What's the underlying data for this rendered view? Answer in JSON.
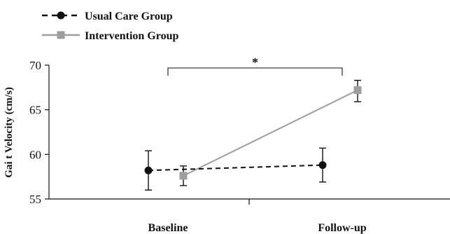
{
  "chart_data": {
    "type": "line",
    "ylabel": "Gai t Velocity (cm/s)",
    "xlabel": "",
    "categories": [
      "Baseline",
      "Follow-up"
    ],
    "ylim": [
      55,
      70
    ],
    "yticks": [
      55,
      60,
      65,
      70
    ],
    "grid": false,
    "legend_position": "top-left",
    "series": [
      {
        "name": "Usual Care Group",
        "values": [
          58.2,
          58.8
        ],
        "error_low": [
          56.0,
          56.9
        ],
        "error_high": [
          60.4,
          60.7
        ],
        "style": "dashed",
        "marker": "circle",
        "color": "#111111"
      },
      {
        "name": "Intervention Group",
        "values": [
          57.6,
          67.2
        ],
        "error_low": [
          56.5,
          65.9
        ],
        "error_high": [
          58.7,
          68.3
        ],
        "style": "solid",
        "marker": "square",
        "color": "#9e9e9e"
      }
    ],
    "annotations": [
      {
        "type": "significance-bracket",
        "text": "*",
        "from": "Baseline",
        "to": "Follow-up"
      }
    ]
  }
}
